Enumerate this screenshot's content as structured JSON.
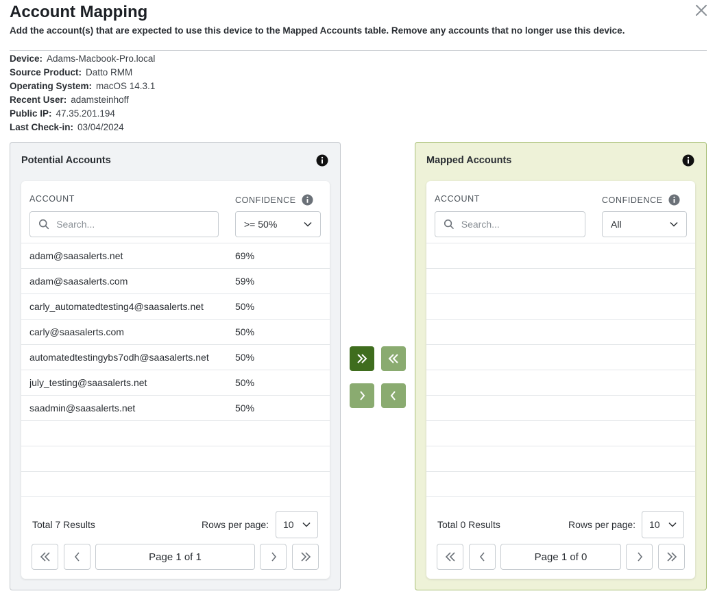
{
  "header": {
    "title": "Account Mapping",
    "subtitle": "Add the account(s) that are expected to use this device to the Mapped Accounts table. Remove any accounts that no longer use this device."
  },
  "device_info": [
    {
      "label": "Device:",
      "value": "Adams-Macbook-Pro.local"
    },
    {
      "label": "Source Product:",
      "value": "Datto RMM"
    },
    {
      "label": "Operating System:",
      "value": "macOS 14.3.1"
    },
    {
      "label": "Recent User:",
      "value": "adamsteinhoff"
    },
    {
      "label": "Public IP:",
      "value": "47.35.201.194"
    },
    {
      "label": "Last Check-in:",
      "value": "03/04/2024"
    }
  ],
  "potential": {
    "title": "Potential Accounts",
    "col_account": "ACCOUNT",
    "col_confidence": "CONFIDENCE",
    "search_placeholder": "Search...",
    "confidence_filter": ">= 50%",
    "rows": [
      {
        "account": "adam@saasalerts.net",
        "confidence": "69%"
      },
      {
        "account": "adam@saasalerts.com",
        "confidence": "59%"
      },
      {
        "account": "carly_automatedtesting4@saasalerts.net",
        "confidence": "50%"
      },
      {
        "account": "carly@saasalerts.com",
        "confidence": "50%"
      },
      {
        "account": "automatedtestingybs7odh@saasalerts.net",
        "confidence": "50%"
      },
      {
        "account": "july_testing@saasalerts.net",
        "confidence": "50%"
      },
      {
        "account": "saadmin@saasalerts.net",
        "confidence": "50%"
      },
      {
        "account": "",
        "confidence": ""
      },
      {
        "account": "",
        "confidence": ""
      },
      {
        "account": "",
        "confidence": ""
      }
    ],
    "total_prefix": "Total ",
    "total_count": "7",
    "total_suffix": " Results",
    "rows_per_page_label": "Rows per page:",
    "rows_per_page": "10",
    "page_label": "Page 1 of 1"
  },
  "mapped": {
    "title": "Mapped Accounts",
    "col_account": "ACCOUNT",
    "col_confidence": "CONFIDENCE",
    "search_placeholder": "Search...",
    "confidence_filter": "All",
    "rows": [
      {
        "account": "",
        "confidence": ""
      },
      {
        "account": "",
        "confidence": ""
      },
      {
        "account": "",
        "confidence": ""
      },
      {
        "account": "",
        "confidence": ""
      },
      {
        "account": "",
        "confidence": ""
      },
      {
        "account": "",
        "confidence": ""
      },
      {
        "account": "",
        "confidence": ""
      },
      {
        "account": "",
        "confidence": ""
      },
      {
        "account": "",
        "confidence": ""
      },
      {
        "account": "",
        "confidence": ""
      }
    ],
    "total_prefix": "Total ",
    "total_count": "0",
    "total_suffix": " Results",
    "rows_per_page_label": "Rows per page:",
    "rows_per_page": "10",
    "page_label": "Page 1 of 0"
  },
  "transfer_buttons": [
    {
      "name": "move-all-right-button",
      "icon": "double-chevron-right-icon",
      "state": "active"
    },
    {
      "name": "move-all-left-button",
      "icon": "double-chevron-left-icon",
      "state": "disabled"
    },
    {
      "name": "move-selected-right-button",
      "icon": "chevron-right-icon",
      "state": "disabled"
    },
    {
      "name": "move-selected-left-button",
      "icon": "chevron-left-icon",
      "state": "disabled"
    }
  ],
  "colors": {
    "accent_dark": "#3f6d1e",
    "accent_light": "#8aab70",
    "mapped_panel_bg": "#eef2d8",
    "potential_panel_bg": "#f1f3f5"
  }
}
